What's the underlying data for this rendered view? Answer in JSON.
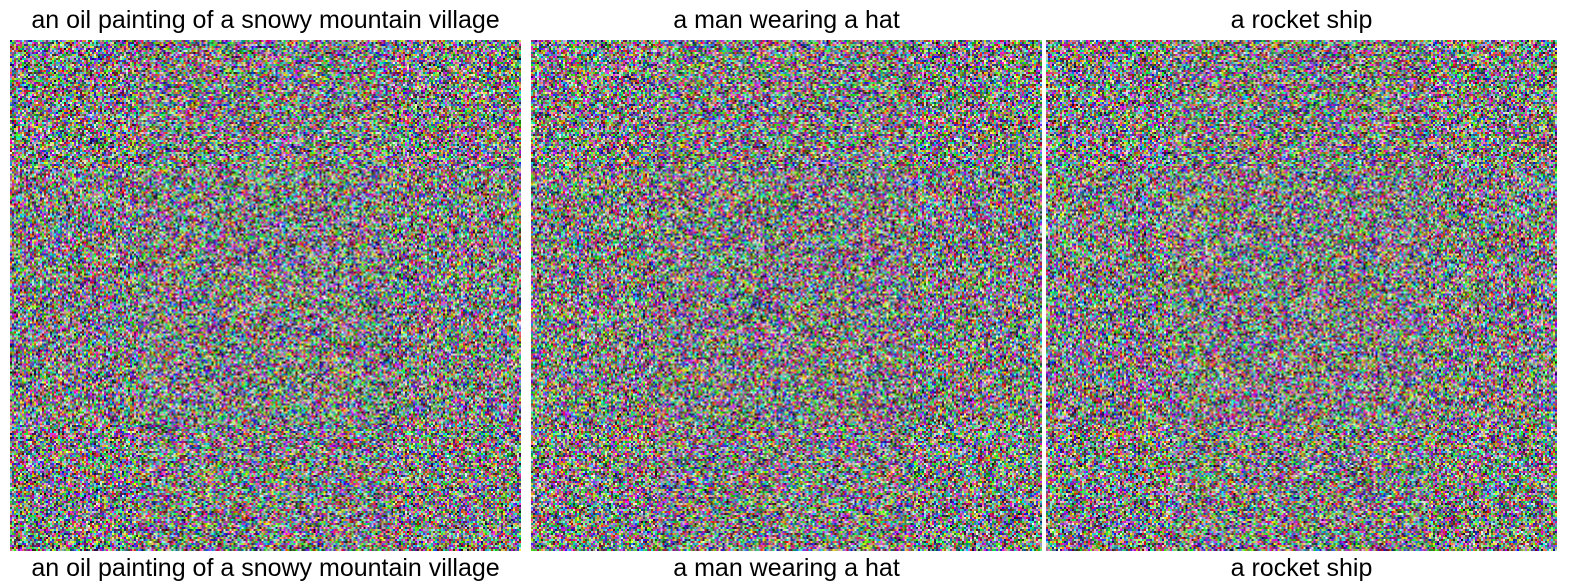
{
  "panels": [
    {
      "title": "an oil painting of a snowy mountain village",
      "caption": "an oil painting of a snowy mountain village"
    },
    {
      "title": "a man wearing a hat",
      "caption": "a man wearing a hat"
    },
    {
      "title": "a rocket ship",
      "caption": "a rocket ship"
    }
  ]
}
